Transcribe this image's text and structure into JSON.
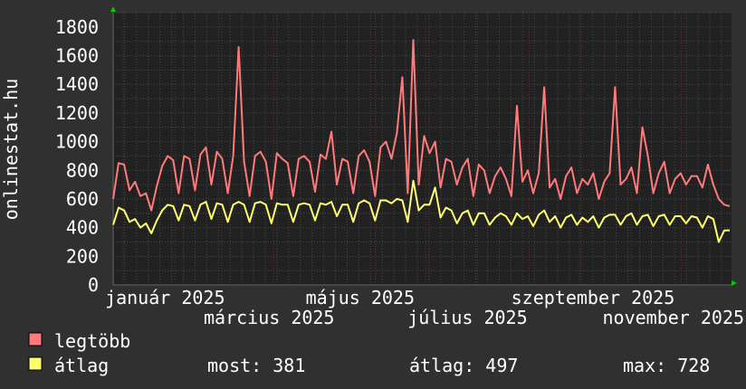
{
  "chart_data": {
    "type": "line",
    "title": "",
    "ylabel": "onlinestat.hu",
    "xlabel": "",
    "ylim": [
      0,
      1900
    ],
    "y_ticks": [
      0,
      200,
      400,
      600,
      800,
      1000,
      1200,
      1400,
      1600,
      1800
    ],
    "x_range": [
      "2024-12-26",
      "2025-12-31"
    ],
    "x_tick_labels": [
      {
        "date": "2025-01-01",
        "label": "január 2025"
      },
      {
        "date": "2025-03-01",
        "label": "március 2025"
      },
      {
        "date": "2025-05-01",
        "label": "május 2025"
      },
      {
        "date": "2025-07-01",
        "label": "július 2025"
      },
      {
        "date": "2025-09-01",
        "label": "szeptember 2025"
      },
      {
        "date": "2025-11-01",
        "label": "november 2025"
      }
    ],
    "grid": true,
    "legend_position": "bottom-left",
    "colors": {
      "background": "#303030",
      "plot": "#212121",
      "grid_minor": "#4a4a4a",
      "grid_major": "#6a3030",
      "arrow": "#00cc00"
    },
    "series": [
      {
        "name": "legtöbb",
        "color": "#ff7a7a",
        "values": [
          600,
          850,
          840,
          660,
          720,
          620,
          640,
          520,
          690,
          830,
          900,
          870,
          640,
          900,
          880,
          660,
          910,
          960,
          700,
          930,
          880,
          640,
          900,
          1660,
          860,
          620,
          900,
          930,
          860,
          600,
          920,
          880,
          850,
          620,
          880,
          900,
          860,
          650,
          910,
          880,
          1070,
          700,
          880,
          860,
          640,
          900,
          940,
          860,
          620,
          960,
          1000,
          880,
          1060,
          1450,
          640,
          1710,
          700,
          1040,
          920,
          1000,
          680,
          880,
          860,
          700,
          820,
          880,
          620,
          840,
          800,
          640,
          760,
          820,
          740,
          620,
          1250,
          720,
          800,
          640,
          780,
          1380,
          680,
          740,
          600,
          760,
          820,
          640,
          740,
          700,
          780,
          600,
          720,
          780,
          1380,
          700,
          740,
          820,
          640,
          1100,
          900,
          640,
          780,
          860,
          640,
          740,
          780,
          700,
          760,
          760,
          680,
          840,
          700,
          600,
          560,
          550
        ]
      },
      {
        "name": "átlag",
        "color": "#ffff70",
        "values": [
          420,
          540,
          520,
          440,
          460,
          400,
          430,
          360,
          450,
          520,
          560,
          550,
          450,
          560,
          550,
          450,
          560,
          580,
          460,
          570,
          560,
          440,
          560,
          580,
          560,
          440,
          570,
          580,
          560,
          430,
          570,
          560,
          560,
          440,
          560,
          570,
          560,
          450,
          570,
          560,
          580,
          480,
          560,
          560,
          440,
          570,
          590,
          570,
          450,
          590,
          590,
          570,
          600,
          590,
          440,
          728,
          520,
          560,
          560,
          680,
          470,
          540,
          520,
          430,
          500,
          520,
          420,
          500,
          500,
          420,
          470,
          500,
          480,
          420,
          500,
          460,
          480,
          410,
          490,
          520,
          440,
          480,
          400,
          470,
          490,
          420,
          470,
          440,
          480,
          400,
          470,
          490,
          490,
          420,
          480,
          500,
          420,
          480,
          490,
          410,
          480,
          490,
          420,
          480,
          480,
          430,
          480,
          470,
          400,
          480,
          460,
          300,
          380,
          381
        ]
      }
    ],
    "legend": {
      "items": [
        {
          "label": "legtöbb",
          "color": "#ff7a7a"
        },
        {
          "label": "átlag",
          "color": "#ffff70"
        }
      ],
      "stats": {
        "most": "most: 381",
        "atlag": "átlag: 497",
        "max": "max: 728"
      }
    }
  }
}
